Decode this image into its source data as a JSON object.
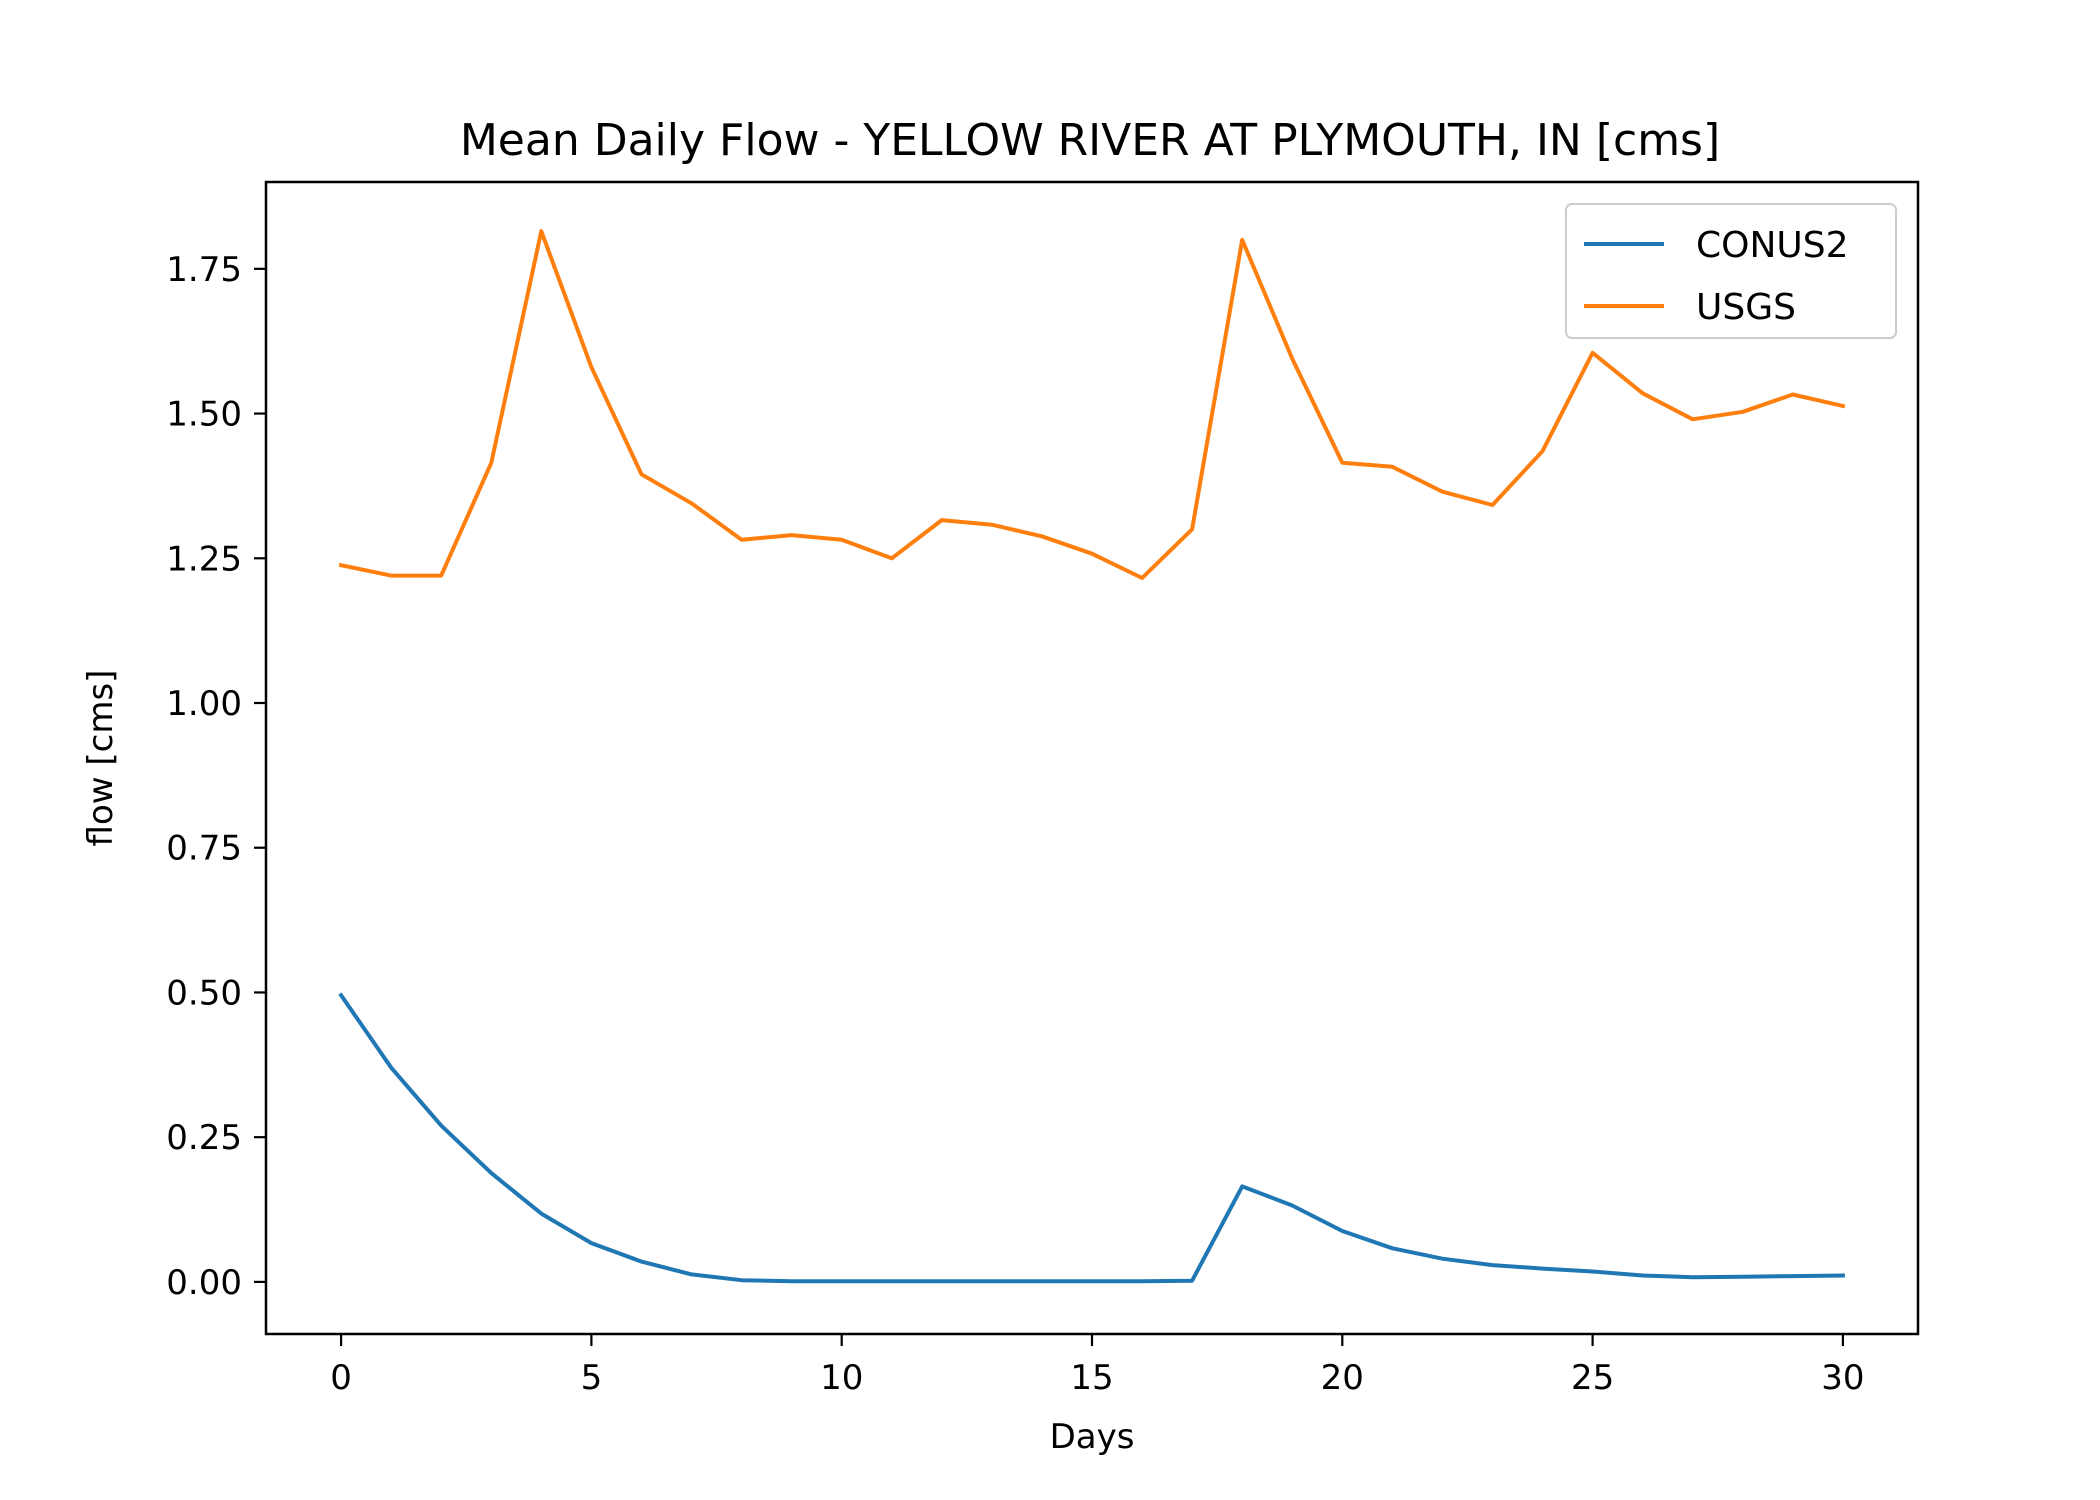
{
  "chart_data": {
    "type": "line",
    "title": "Mean Daily Flow - YELLOW RIVER AT PLYMOUTH, IN [cms]",
    "xlabel": "Days",
    "ylabel": "flow [cms]",
    "xlim": [
      -1.5,
      31.5
    ],
    "ylim": [
      -0.09,
      1.9
    ],
    "xticks": [
      0,
      5,
      10,
      15,
      20,
      25,
      30
    ],
    "yticks": [
      0.0,
      0.25,
      0.5,
      0.75,
      1.0,
      1.25,
      1.5,
      1.75
    ],
    "ytick_labels": [
      "0.00",
      "0.25",
      "0.50",
      "0.75",
      "1.00",
      "1.25",
      "1.50",
      "1.75"
    ],
    "grid": false,
    "legend_position": "top-right",
    "x": [
      0,
      1,
      2,
      3,
      4,
      5,
      6,
      7,
      8,
      9,
      10,
      11,
      12,
      13,
      14,
      15,
      16,
      17,
      18,
      19,
      20,
      21,
      22,
      23,
      24,
      25,
      26,
      27,
      28,
      29,
      30
    ],
    "series": [
      {
        "name": "CONUS2",
        "color": "#1f77b4",
        "values": [
          0.495,
          0.37,
          0.27,
          0.188,
          0.118,
          0.067,
          0.035,
          0.013,
          0.003,
          0.001,
          0.001,
          0.001,
          0.001,
          0.001,
          0.001,
          0.001,
          0.001,
          0.002,
          0.165,
          0.132,
          0.088,
          0.058,
          0.04,
          0.029,
          0.023,
          0.018,
          0.011,
          0.008,
          0.009,
          0.01,
          0.011
        ]
      },
      {
        "name": "USGS",
        "color": "#ff7f0e",
        "values": [
          1.238,
          1.22,
          1.22,
          1.415,
          1.815,
          1.58,
          1.395,
          1.345,
          1.282,
          1.29,
          1.282,
          1.25,
          1.316,
          1.308,
          1.288,
          1.258,
          1.216,
          1.3,
          1.8,
          1.595,
          1.415,
          1.408,
          1.365,
          1.342,
          1.435,
          1.605,
          1.535,
          1.49,
          1.503,
          1.533,
          1.513
        ]
      }
    ]
  }
}
